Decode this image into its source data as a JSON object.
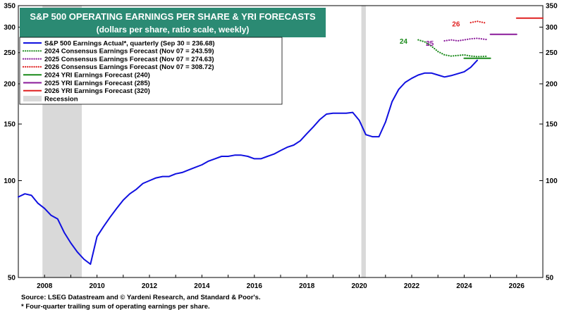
{
  "colors": {
    "actual": "#1010e0",
    "f2024": "#1a8a1a",
    "f2025": "#8a1a9a",
    "f2026": "#e02020",
    "recession": "#d9d9d9",
    "title_bg": "#2b8a73"
  },
  "chart_data": {
    "type": "line",
    "title": "S&P 500 OPERATING EARNINGS PER SHARE & YRI FORECASTS",
    "subtitle": "(dollars per share, ratio scale, weekly)",
    "y_scale": "log",
    "ylim": [
      50,
      350
    ],
    "xlim": [
      2007.0,
      2027.0
    ],
    "y_ticks": [
      50,
      100,
      150,
      200,
      250,
      300,
      350
    ],
    "x_ticks": [
      "2008",
      "2010",
      "2012",
      "2014",
      "2016",
      "2018",
      "2020",
      "2022",
      "2024",
      "2026"
    ],
    "legend_position": "top-left",
    "legend": [
      {
        "label": "S&P 500 Earnings Actual*, quarterly (Sep 30 = 236.68)",
        "style": "solid",
        "color_key": "actual"
      },
      {
        "label": "2024 Consensus Earnings Forecast (Nov 07 = 243.59)",
        "style": "dotted",
        "color_key": "f2024"
      },
      {
        "label": "2025 Consensus Earnings Forecast (Nov 07 = 274.63)",
        "style": "dotted",
        "color_key": "f2025"
      },
      {
        "label": "2026 Consensus Earnings Forecast (Nov 07 = 308.72)",
        "style": "dotted",
        "color_key": "f2026"
      },
      {
        "label": "2024 YRI Earnings Forecast (240)",
        "style": "solid",
        "color_key": "f2024"
      },
      {
        "label": "2025 YRI Earnings Forecast (285)",
        "style": "solid",
        "color_key": "f2025"
      },
      {
        "label": "2026 YRI Earnings Forecast (320)",
        "style": "solid",
        "color_key": "f2026"
      },
      {
        "label": "Recession",
        "style": "box",
        "color_key": "recession"
      }
    ],
    "recessions": [
      [
        2007.92,
        2009.42
      ],
      [
        2020.08,
        2020.25
      ]
    ],
    "series": [
      {
        "name": "S&P 500 Earnings Actual*, quarterly (Sep 30 = 236.68)",
        "color_key": "actual",
        "style": "solid",
        "x": [
          2007.0,
          2007.25,
          2007.5,
          2007.75,
          2008.0,
          2008.25,
          2008.5,
          2008.75,
          2009.0,
          2009.25,
          2009.5,
          2009.75,
          2010.0,
          2010.25,
          2010.5,
          2010.75,
          2011.0,
          2011.25,
          2011.5,
          2011.75,
          2012.0,
          2012.25,
          2012.5,
          2012.75,
          2013.0,
          2013.25,
          2013.5,
          2013.75,
          2014.0,
          2014.25,
          2014.5,
          2014.75,
          2015.0,
          2015.25,
          2015.5,
          2015.75,
          2016.0,
          2016.25,
          2016.5,
          2016.75,
          2017.0,
          2017.25,
          2017.5,
          2017.75,
          2018.0,
          2018.25,
          2018.5,
          2018.75,
          2019.0,
          2019.25,
          2019.5,
          2019.75,
          2020.0,
          2020.25,
          2020.5,
          2020.75,
          2021.0,
          2021.25,
          2021.5,
          2021.75,
          2022.0,
          2022.25,
          2022.5,
          2022.75,
          2023.0,
          2023.25,
          2023.5,
          2023.75,
          2024.0,
          2024.25,
          2024.5
        ],
        "values": [
          89,
          91,
          90,
          85,
          82,
          78,
          76,
          69,
          64,
          60,
          57,
          55,
          67,
          72,
          77,
          82,
          87,
          91,
          94,
          98,
          100,
          102,
          103,
          103,
          105,
          106,
          108,
          110,
          112,
          115,
          117,
          119,
          119,
          120,
          120,
          119,
          117,
          117,
          119,
          121,
          124,
          127,
          129,
          133,
          140,
          147,
          155,
          161,
          162,
          162,
          162,
          163,
          154,
          139,
          137,
          137,
          152,
          176,
          192,
          202,
          208,
          213,
          216,
          216,
          213,
          210,
          212,
          215,
          218,
          225,
          236.68
        ]
      },
      {
        "name": "2024 Consensus Earnings Forecast (Nov 07 = 243.59)",
        "color_key": "f2024",
        "style": "dotted",
        "x": [
          2022.25,
          2022.5,
          2022.75,
          2023.0,
          2023.25,
          2023.5,
          2023.75,
          2024.0,
          2024.25,
          2024.5,
          2024.85
        ],
        "values": [
          274,
          270,
          262,
          252,
          246,
          244,
          245,
          246,
          244,
          243,
          243.59
        ]
      },
      {
        "name": "2025 Consensus Earnings Forecast (Nov 07 = 274.63)",
        "color_key": "f2025",
        "style": "dotted",
        "x": [
          2023.25,
          2023.5,
          2023.75,
          2024.0,
          2024.25,
          2024.5,
          2024.85
        ],
        "values": [
          272,
          274,
          272,
          274,
          276,
          277,
          274.63
        ]
      },
      {
        "name": "2026 Consensus Earnings Forecast (Nov 07 = 308.72)",
        "color_key": "f2026",
        "style": "dotted",
        "x": [
          2024.25,
          2024.5,
          2024.85
        ],
        "values": [
          310,
          313,
          308.72
        ]
      },
      {
        "name": "2024 YRI Earnings Forecast (240)",
        "color_key": "f2024",
        "style": "solid",
        "x": [
          2024.0,
          2025.0
        ],
        "values": [
          240,
          240
        ]
      },
      {
        "name": "2025 YRI Earnings Forecast (285)",
        "color_key": "f2025",
        "style": "solid",
        "x": [
          2025.0,
          2026.0
        ],
        "values": [
          285,
          285
        ]
      },
      {
        "name": "2026 YRI Earnings Forecast (320)",
        "color_key": "f2026",
        "style": "solid",
        "x": [
          2026.0,
          2027.0
        ],
        "values": [
          320,
          320
        ]
      }
    ],
    "annotations": [
      {
        "text": "24",
        "x": 2022.0,
        "y": 272,
        "color_key": "f2024"
      },
      {
        "text": "25",
        "x": 2023.0,
        "y": 268,
        "color_key": "f2025"
      },
      {
        "text": "26",
        "x": 2024.0,
        "y": 308,
        "color_key": "f2026"
      }
    ],
    "footnotes": [
      "Source: LSEG Datastream and © Yardeni Research, and Standard & Poor's.",
      "* Four-quarter trailing sum of operating earnings per share."
    ]
  }
}
